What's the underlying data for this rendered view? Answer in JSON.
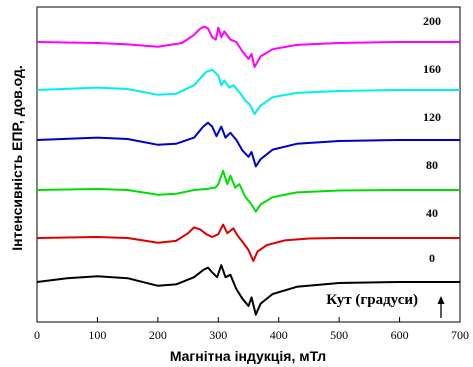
{
  "chart_data": {
    "type": "line",
    "xlabel": "Магнітна індукція, мТл",
    "ylabel": "Інтенсивність ЕПР, дов.од.",
    "xlim": [
      0,
      700
    ],
    "xticks": [
      "0",
      "100",
      "200",
      "300",
      "400",
      "500",
      "600",
      "700"
    ],
    "annotation": "Кут (градуси)",
    "series": [
      {
        "name": "200",
        "color": "#ff00ff",
        "offset": 5,
        "x": [
          0,
          100,
          150,
          200,
          240,
          260,
          270,
          277,
          283,
          290,
          296,
          300,
          305,
          310,
          320,
          330,
          340,
          350,
          355,
          360,
          370,
          390,
          430,
          500,
          600,
          700
        ],
        "y": [
          0.0,
          -0.02,
          -0.05,
          -0.1,
          -0.02,
          0.15,
          0.28,
          0.32,
          0.28,
          0.1,
          0.05,
          0.3,
          0.1,
          0.22,
          0.05,
          0.0,
          -0.2,
          -0.35,
          -0.25,
          -0.52,
          -0.3,
          -0.15,
          -0.06,
          -0.02,
          0.0,
          0.0
        ]
      },
      {
        "name": "160",
        "color": "#00eeee",
        "offset": 4,
        "x": [
          0,
          100,
          150,
          200,
          230,
          260,
          280,
          290,
          300,
          305,
          310,
          318,
          325,
          335,
          345,
          352,
          360,
          370,
          390,
          430,
          500,
          600,
          700
        ],
        "y": [
          0.0,
          0.05,
          0.02,
          -0.1,
          -0.08,
          0.1,
          0.38,
          0.42,
          0.3,
          0.1,
          0.2,
          0.05,
          0.1,
          -0.05,
          -0.22,
          -0.3,
          -0.5,
          -0.32,
          -0.15,
          -0.06,
          -0.02,
          0.0,
          0.0
        ]
      },
      {
        "name": "120",
        "color": "#0000cc",
        "offset": 3,
        "x": [
          0,
          100,
          150,
          200,
          230,
          260,
          275,
          283,
          290,
          297,
          305,
          312,
          320,
          330,
          340,
          350,
          355,
          362,
          370,
          390,
          430,
          500,
          600,
          700
        ],
        "y": [
          0.0,
          0.05,
          0.02,
          -0.1,
          -0.08,
          0.05,
          0.28,
          0.36,
          0.28,
          0.08,
          0.28,
          0.05,
          0.15,
          0.0,
          -0.22,
          -0.35,
          -0.25,
          -0.55,
          -0.4,
          -0.2,
          -0.08,
          -0.02,
          0.0,
          0.0
        ]
      },
      {
        "name": "80",
        "color": "#00dd00",
        "offset": 2,
        "x": [
          0,
          100,
          150,
          200,
          230,
          260,
          280,
          295,
          300,
          308,
          315,
          320,
          328,
          335,
          345,
          355,
          362,
          370,
          390,
          430,
          500,
          600,
          700
        ],
        "y": [
          0.0,
          0.02,
          0.0,
          -0.1,
          -0.08,
          0.0,
          0.02,
          0.05,
          0.12,
          0.4,
          0.12,
          0.3,
          0.05,
          0.12,
          -0.15,
          -0.3,
          -0.45,
          -0.3,
          -0.15,
          -0.05,
          -0.01,
          0.0,
          0.0
        ]
      },
      {
        "name": "40",
        "color": "#dd0000",
        "offset": 1,
        "x": [
          0,
          100,
          150,
          200,
          230,
          250,
          260,
          270,
          280,
          290,
          300,
          308,
          315,
          325,
          332,
          340,
          350,
          358,
          365,
          380,
          410,
          450,
          500,
          600,
          700
        ],
        "y": [
          0.0,
          0.02,
          0.0,
          -0.1,
          -0.06,
          0.1,
          0.22,
          0.18,
          0.08,
          0.02,
          0.08,
          0.28,
          0.1,
          0.2,
          0.05,
          -0.08,
          -0.25,
          -0.48,
          -0.28,
          -0.15,
          -0.05,
          -0.01,
          0.0,
          0.0,
          0.0
        ]
      },
      {
        "name": "0",
        "color": "#000000",
        "offset": 0,
        "x": [
          0,
          50,
          100,
          150,
          200,
          230,
          260,
          275,
          283,
          290,
          298,
          305,
          312,
          320,
          330,
          340,
          350,
          355,
          362,
          370,
          390,
          430,
          500,
          600,
          700
        ],
        "y": [
          0.0,
          0.08,
          0.12,
          0.08,
          -0.08,
          -0.05,
          0.1,
          0.25,
          0.3,
          0.2,
          0.1,
          0.35,
          0.1,
          0.15,
          -0.15,
          -0.35,
          -0.5,
          -0.32,
          -0.68,
          -0.45,
          -0.25,
          -0.1,
          -0.02,
          0.0,
          0.0
        ]
      }
    ]
  }
}
